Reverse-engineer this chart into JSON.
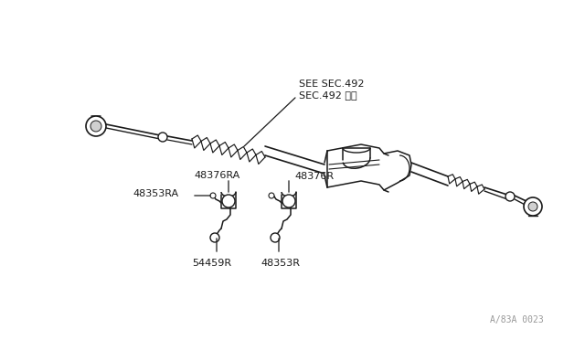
{
  "bg_color": "#ffffff",
  "line_color": "#1a1a1a",
  "watermark": "A/83A 0023",
  "labels": {
    "see_sec_line1": "SEE SEC.492",
    "see_sec_line2": "SEC.492 参照",
    "48376RA": "48376RA",
    "48376R": "48376R",
    "48353RA": "48353RA",
    "48353R": "48353R",
    "54459R": "54459R"
  }
}
